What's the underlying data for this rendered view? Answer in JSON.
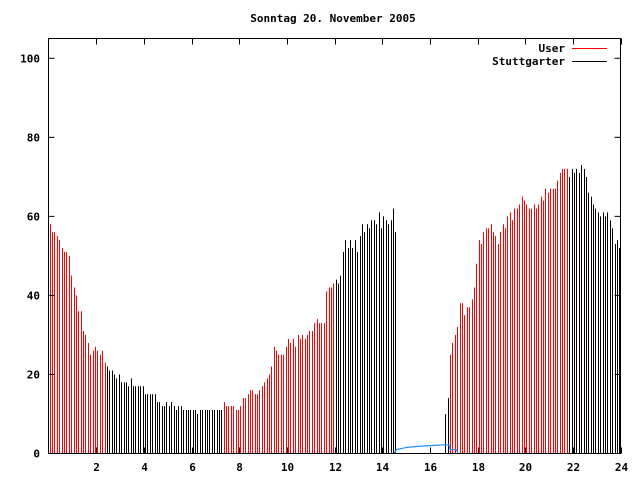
{
  "chart_data": {
    "type": "bar",
    "title": "Sonntag 20. November 2005",
    "xlabel": "",
    "ylabel": "",
    "xlim": [
      0,
      24
    ],
    "ylim": [
      0,
      105
    ],
    "x_ticks": [
      "2",
      "4",
      "6",
      "8",
      "10",
      "12",
      "14",
      "16",
      "18",
      "20",
      "22",
      "24"
    ],
    "y_ticks": [
      "0",
      "20",
      "40",
      "60",
      "80",
      "100"
    ],
    "grid": false,
    "legend_position": "top-right",
    "legend": [
      {
        "name": "User",
        "color": "#ff0000"
      },
      {
        "name": "Stuttgarter",
        "color": "#000000"
      }
    ],
    "bar_interval_hours": 0.1,
    "values": [
      58,
      56,
      56,
      55,
      54,
      52,
      51,
      51,
      50,
      45,
      42,
      40,
      36,
      36,
      31,
      30,
      28,
      25,
      26,
      27,
      26,
      25,
      26,
      23,
      22,
      21,
      21,
      20,
      19,
      20,
      18,
      18,
      18,
      17,
      19,
      17,
      17,
      17,
      17,
      17,
      15,
      15,
      15,
      15,
      15,
      13,
      13,
      12,
      12,
      13,
      12,
      13,
      12,
      11,
      12,
      12,
      11,
      11,
      11,
      11,
      11,
      11,
      10,
      11,
      11,
      11,
      11,
      11,
      11,
      11,
      11,
      11,
      11,
      13,
      12,
      12,
      12,
      12,
      11,
      11,
      12,
      14,
      14,
      15,
      16,
      16,
      15,
      15,
      16,
      17,
      18,
      19,
      20,
      22,
      27,
      26,
      25,
      25,
      25,
      27,
      29,
      28,
      29,
      27,
      30,
      29,
      30,
      29,
      30,
      31,
      31,
      33,
      34,
      33,
      33,
      33,
      41,
      42,
      42,
      43,
      44,
      43,
      45,
      51,
      54,
      52,
      54,
      52,
      54,
      51,
      55,
      58,
      56,
      58,
      57,
      59,
      59,
      58,
      61,
      57,
      60,
      59,
      58,
      59,
      62,
      56,
      0,
      0,
      0,
      0,
      0,
      0,
      0,
      0,
      0,
      0,
      0,
      0,
      0,
      0,
      0,
      0,
      0,
      0,
      0,
      0,
      10,
      14,
      25,
      28,
      30,
      32,
      38,
      38,
      35,
      37,
      37,
      39,
      42,
      48,
      54,
      53,
      56,
      57,
      57,
      58,
      56,
      55,
      53,
      56,
      58,
      57,
      60,
      61,
      59,
      62,
      62,
      63,
      65,
      64,
      63,
      62,
      62,
      63,
      62,
      63,
      65,
      64,
      67,
      66,
      67,
      67,
      67,
      69,
      71,
      72,
      72,
      72,
      70,
      72,
      71,
      72,
      71,
      73,
      72,
      70,
      66,
      65,
      63,
      62,
      61,
      60,
      61,
      60,
      61,
      59,
      57,
      53,
      54,
      52
    ],
    "stuttgarter_ranges": [
      [
        2.4,
        7.3
      ],
      [
        12.0,
        14.6
      ],
      [
        16.6,
        16.8
      ],
      [
        21.8,
        24.0
      ]
    ],
    "line_series": {
      "color": "#1e90ff",
      "points": [
        [
          14.5,
          0
        ],
        [
          14.6,
          1
        ],
        [
          15.0,
          1.5
        ],
        [
          15.5,
          1.8
        ],
        [
          16.0,
          2.0
        ],
        [
          16.6,
          2.2
        ],
        [
          16.8,
          2.2
        ],
        [
          16.85,
          1.0
        ],
        [
          17.1,
          1.0
        ],
        [
          17.2,
          0
        ]
      ]
    }
  }
}
